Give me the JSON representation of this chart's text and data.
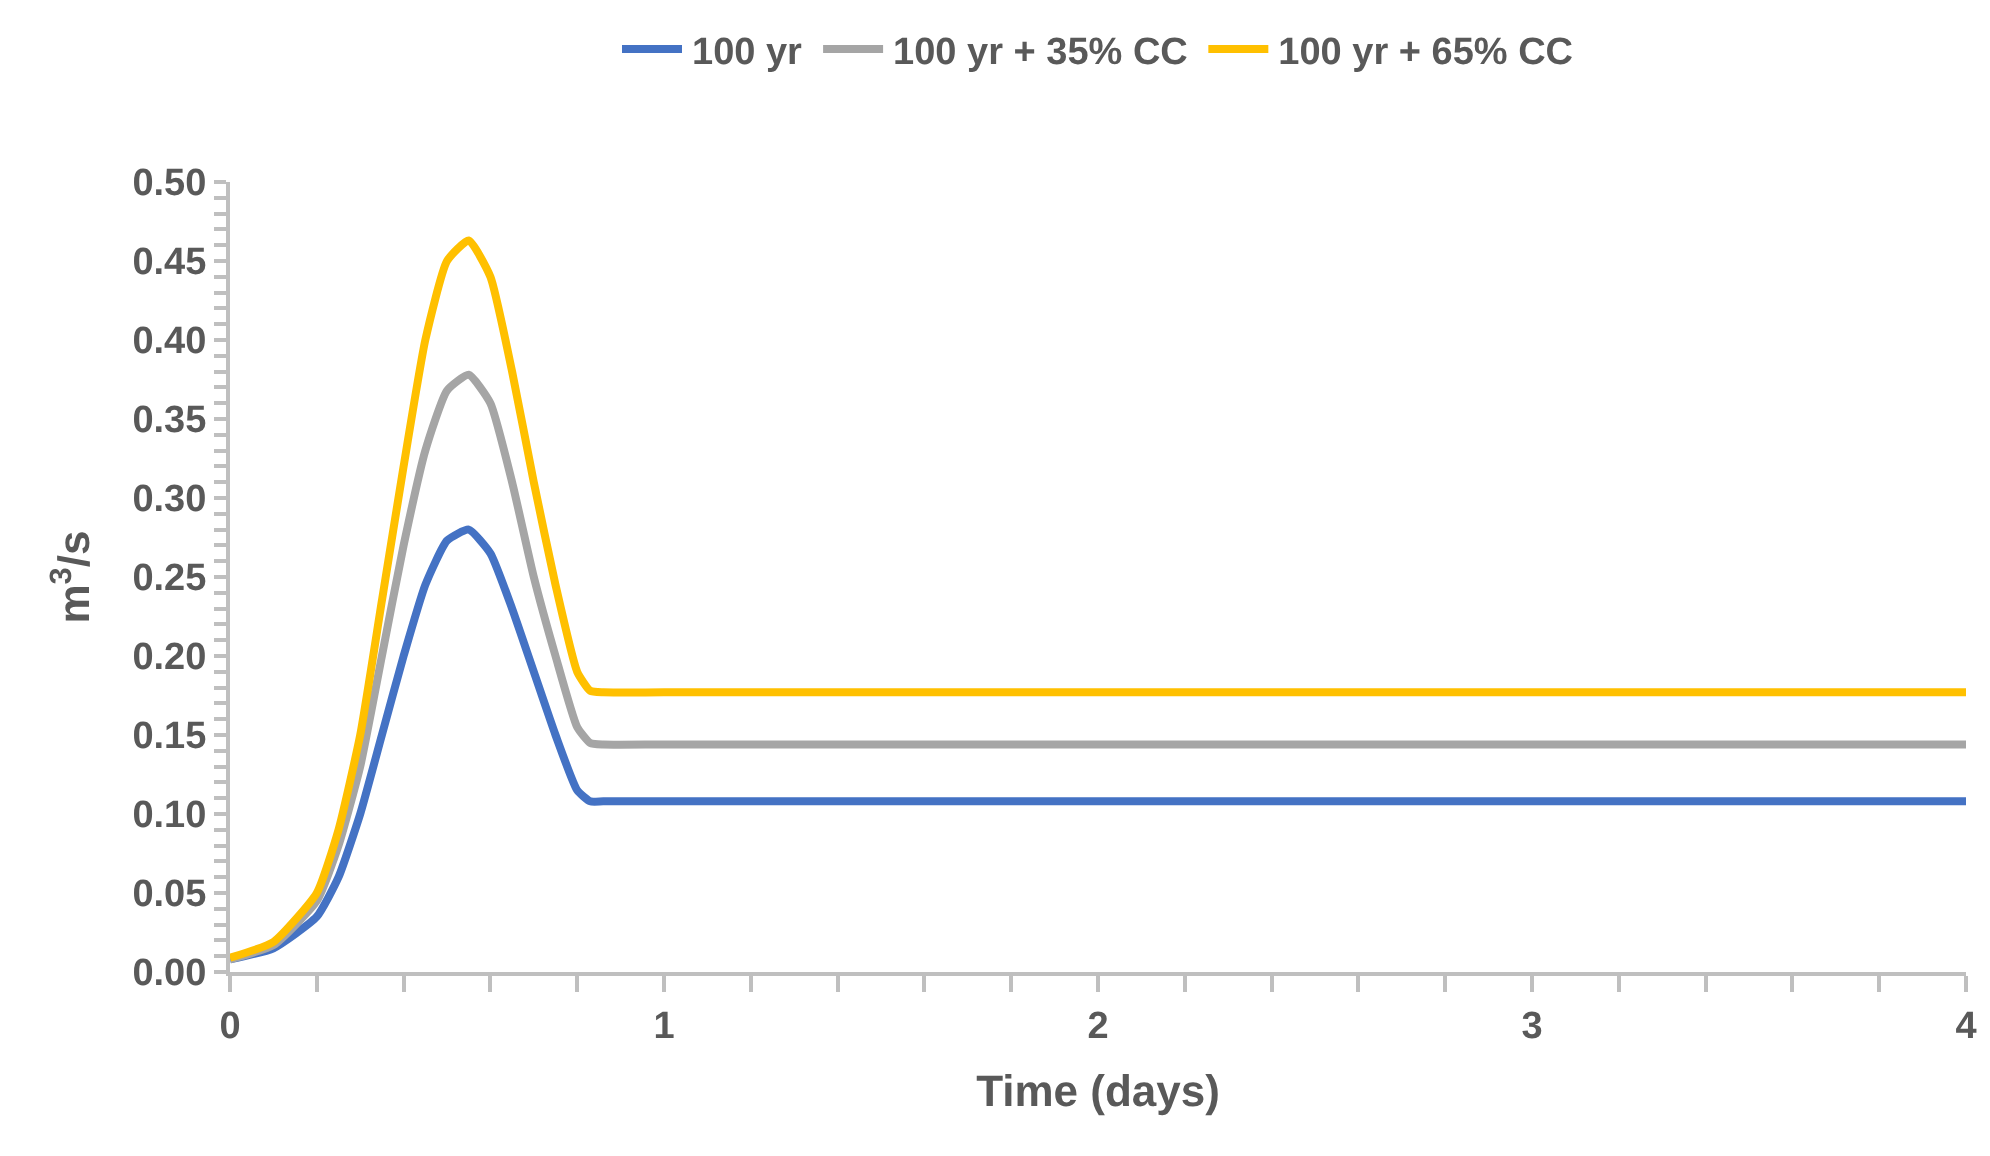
{
  "chart_data": {
    "type": "line",
    "xlabel": "Time (days)",
    "ylabel": "m$^{3}$/s",
    "x": [
      0,
      0.1,
      0.2,
      0.25,
      0.3,
      0.35,
      0.4,
      0.45,
      0.5,
      0.55,
      0.6,
      0.65,
      0.7,
      0.75,
      0.8,
      0.83,
      0.86,
      1,
      2,
      3,
      4
    ],
    "series": [
      {
        "name": "100 yr",
        "color": "#4472c4",
        "values": [
          0.008,
          0.015,
          0.035,
          0.06,
          0.1,
          0.15,
          0.2,
          0.245,
          0.273,
          0.28,
          0.265,
          0.23,
          0.19,
          0.15,
          0.115,
          0.108,
          0.108,
          0.108,
          0.108,
          0.108,
          0.108
        ]
      },
      {
        "name": "100 yr + 35% CC",
        "color": "#a5a5a5",
        "values": [
          0.008,
          0.017,
          0.045,
          0.08,
          0.13,
          0.2,
          0.27,
          0.33,
          0.368,
          0.378,
          0.36,
          0.31,
          0.25,
          0.2,
          0.155,
          0.145,
          0.144,
          0.144,
          0.144,
          0.144,
          0.144
        ]
      },
      {
        "name": "100 yr + 65% CC",
        "color": "#ffc000",
        "values": [
          0.009,
          0.019,
          0.05,
          0.09,
          0.15,
          0.235,
          0.32,
          0.4,
          0.45,
          0.463,
          0.44,
          0.38,
          0.31,
          0.245,
          0.19,
          0.178,
          0.177,
          0.177,
          0.177,
          0.177,
          0.177
        ]
      }
    ],
    "xlim": [
      0,
      4
    ],
    "xticks": [
      0,
      1,
      2,
      3,
      4
    ],
    "ylim": [
      0,
      0.5
    ],
    "yticks": [
      {
        "value": 0,
        "label": "0.00"
      },
      {
        "value": 0.05,
        "label": "0.05"
      },
      {
        "value": 0.1,
        "label": "0.10"
      },
      {
        "value": 0.15,
        "label": "0.15"
      },
      {
        "value": 0.2,
        "label": "0.20"
      },
      {
        "value": 0.25,
        "label": "0.25"
      },
      {
        "value": 0.3,
        "label": "0.30"
      },
      {
        "value": 0.35,
        "label": "0.35"
      },
      {
        "value": 0.4,
        "label": "0.40"
      },
      {
        "value": 0.45,
        "label": "0.45"
      },
      {
        "value": 0.5,
        "label": "0.50"
      }
    ],
    "legend": "top",
    "marker": "none",
    "line_style": "solid"
  }
}
